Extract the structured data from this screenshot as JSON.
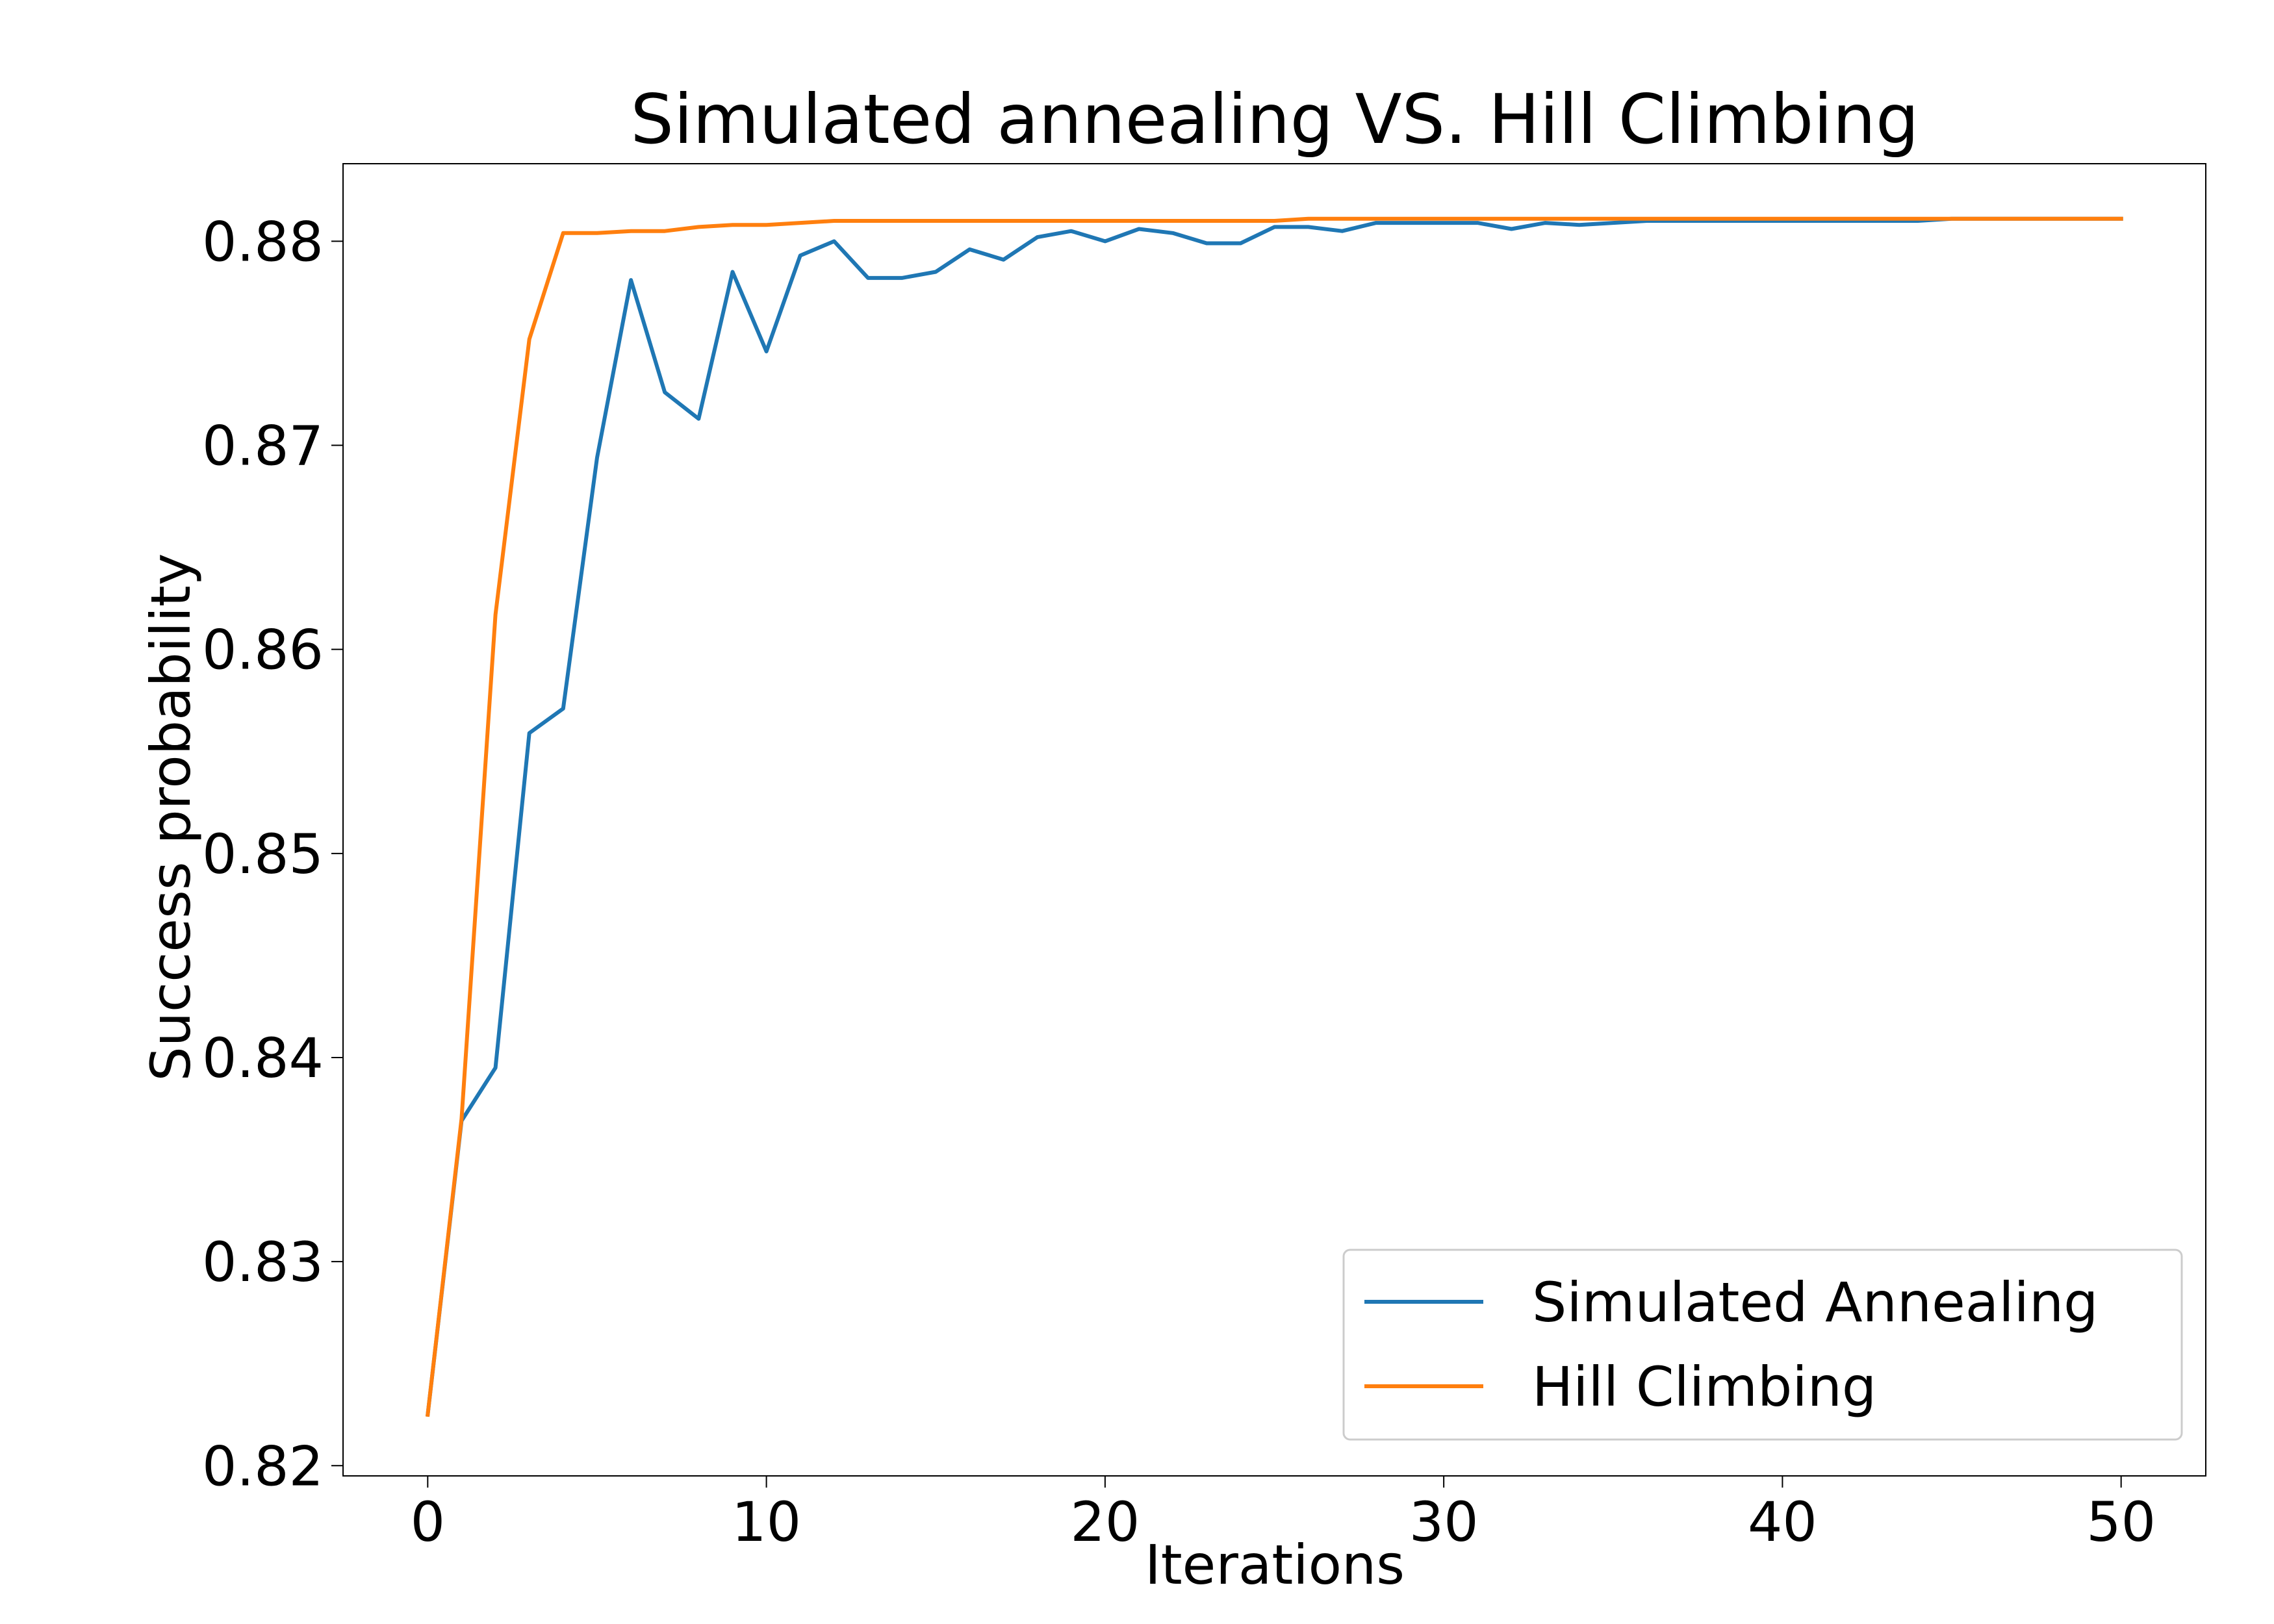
{
  "chart_data": {
    "type": "line",
    "title": "Simulated annealing VS. Hill Climbing",
    "xlabel": "Iterations",
    "ylabel": "Success probability",
    "xlim": [
      -2.5,
      52.5
    ],
    "ylim": [
      0.8195,
      0.8838
    ],
    "xticks": [
      0,
      10,
      20,
      30,
      40,
      50
    ],
    "xtick_labels": [
      "0",
      "10",
      "20",
      "30",
      "40",
      "50"
    ],
    "yticks": [
      0.82,
      0.83,
      0.84,
      0.85,
      0.86,
      0.87,
      0.88
    ],
    "ytick_labels": [
      "0.82",
      "0.83",
      "0.84",
      "0.85",
      "0.86",
      "0.87",
      "0.88"
    ],
    "grid": false,
    "legend": "lower right",
    "x": [
      0,
      1,
      2,
      3,
      4,
      5,
      6,
      7,
      8,
      9,
      10,
      11,
      12,
      13,
      14,
      15,
      16,
      17,
      18,
      19,
      20,
      21,
      22,
      23,
      24,
      25,
      26,
      27,
      28,
      29,
      30,
      31,
      32,
      33,
      34,
      35,
      36,
      37,
      38,
      39,
      40,
      41,
      42,
      43,
      44,
      45,
      46,
      47,
      48,
      49,
      50
    ],
    "series": [
      {
        "name": "Simulated Annealing",
        "color": "#1f77b4",
        "values": [
          0.8225,
          0.8369,
          0.8395,
          0.8559,
          0.8571,
          0.8694,
          0.8781,
          0.8726,
          0.8713,
          0.8785,
          0.8746,
          0.8793,
          0.88,
          0.8782,
          0.8782,
          0.8785,
          0.8796,
          0.8791,
          0.8802,
          0.8805,
          0.88,
          0.8806,
          0.8804,
          0.8799,
          0.8799,
          0.8807,
          0.8807,
          0.8805,
          0.8809,
          0.8809,
          0.8809,
          0.8809,
          0.8806,
          0.8809,
          0.8808,
          0.8809,
          0.881,
          0.881,
          0.881,
          0.881,
          0.881,
          0.881,
          0.881,
          0.881,
          0.881,
          0.8811,
          0.8811,
          0.8811,
          0.8811,
          0.8811,
          0.8811
        ]
      },
      {
        "name": "Hill Climbing",
        "color": "#ff7f0e",
        "values": [
          0.8225,
          0.837,
          0.8617,
          0.8752,
          0.8804,
          0.8804,
          0.8805,
          0.8805,
          0.8807,
          0.8808,
          0.8808,
          0.8809,
          0.881,
          0.881,
          0.881,
          0.881,
          0.881,
          0.881,
          0.881,
          0.881,
          0.881,
          0.881,
          0.881,
          0.881,
          0.881,
          0.881,
          0.8811,
          0.8811,
          0.8811,
          0.8811,
          0.8811,
          0.8811,
          0.8811,
          0.8811,
          0.8811,
          0.8811,
          0.8811,
          0.8811,
          0.8811,
          0.8811,
          0.8811,
          0.8811,
          0.8811,
          0.8811,
          0.8811,
          0.8811,
          0.8811,
          0.8811,
          0.8811,
          0.8811,
          0.8811
        ]
      }
    ]
  }
}
